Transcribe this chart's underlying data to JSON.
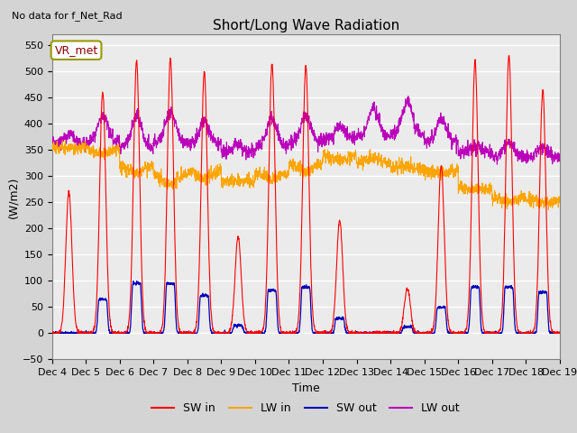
{
  "title": "Short/Long Wave Radiation",
  "subtitle": "No data for f_Net_Rad",
  "ylabel": "(W/m2)",
  "xlabel": "Time",
  "station_label": "VR_met",
  "ylim": [
    -50,
    570
  ],
  "yticks": [
    -50,
    0,
    50,
    100,
    150,
    200,
    250,
    300,
    350,
    400,
    450,
    500,
    550
  ],
  "xtick_labels": [
    "Dec 4",
    "Dec 5",
    "Dec 6",
    "Dec 7",
    "Dec 8",
    "Dec 9",
    "Dec 10",
    "Dec 11",
    "Dec 12",
    "Dec 13",
    "Dec 14",
    "Dec 15",
    "Dec 16",
    "Dec 17",
    "Dec 18",
    "Dec 19"
  ],
  "colors": {
    "SW_in": "#FF0000",
    "LW_in": "#FFA500",
    "SW_out": "#0000BB",
    "LW_out": "#BB00BB"
  },
  "legend_labels": [
    "SW in",
    "LW in",
    "SW out",
    "LW out"
  ],
  "plot_bg_color": "#EBEBEB",
  "fig_bg_color": "#D4D4D4"
}
